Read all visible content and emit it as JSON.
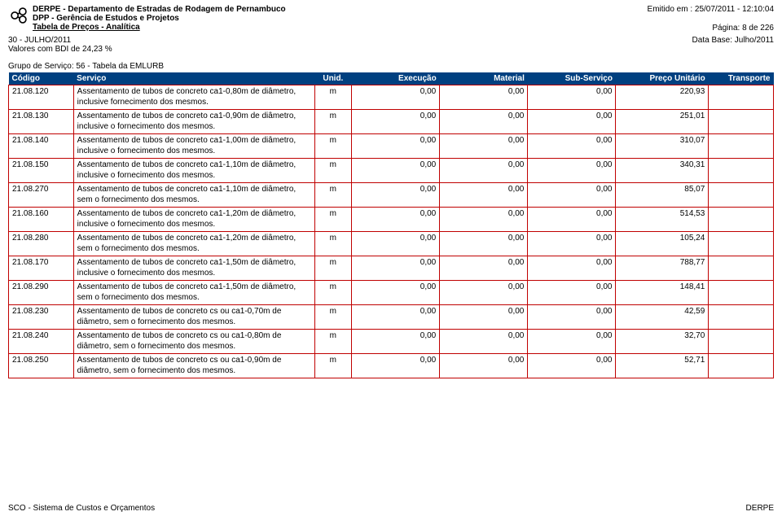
{
  "header": {
    "org": "DERPE - Departamento de Estradas de Rodagem de Pernambuco",
    "dept": "DPP - Gerência de Estudos e Projetos",
    "title": "Tabela de Preços - Analítica",
    "emitted": "Emitido em : 25/07/2011 - 12:10:04",
    "page": "Página: 8 de 226"
  },
  "sub": {
    "period": "30 - JULHO/2011",
    "bdi": "Valores com BDI de 24,23 %",
    "base": "Data Base: Julho/2011"
  },
  "group": "Grupo de Serviço: 56 - Tabela da EMLURB",
  "cols": {
    "codigo": "Código",
    "servico": "Serviço",
    "unid": "Unid.",
    "exec": "Execução",
    "mat": "Material",
    "subserv": "Sub-Serviço",
    "pu": "Preço Unitário",
    "transp": "Transporte"
  },
  "rows": [
    {
      "codigo": "21.08.120",
      "servico": "Assentamento de tubos de concreto ca1-0,80m de diâmetro, inclusive fornecimento dos mesmos.",
      "unid": "m",
      "exec": "0,00",
      "mat": "0,00",
      "sub": "0,00",
      "pu": "220,93",
      "transp": ""
    },
    {
      "codigo": "21.08.130",
      "servico": "Assentamento de tubos de concreto ca1-0,90m de diâmetro, inclusive o fornecimento dos mesmos.",
      "unid": "m",
      "exec": "0,00",
      "mat": "0,00",
      "sub": "0,00",
      "pu": "251,01",
      "transp": ""
    },
    {
      "codigo": "21.08.140",
      "servico": "Assentamento de tubos de concreto ca1-1,00m de diâmetro, inclusive o fornecimento dos mesmos.",
      "unid": "m",
      "exec": "0,00",
      "mat": "0,00",
      "sub": "0,00",
      "pu": "310,07",
      "transp": ""
    },
    {
      "codigo": "21.08.150",
      "servico": "Assentamento de tubos de concreto ca1-1,10m de diâmetro, inclusive o fornecimento dos mesmos.",
      "unid": "m",
      "exec": "0,00",
      "mat": "0,00",
      "sub": "0,00",
      "pu": "340,31",
      "transp": ""
    },
    {
      "codigo": "21.08.270",
      "servico": "Assentamento de tubos de concreto ca1-1,10m de diâmetro, sem o fornecimento dos mesmos.",
      "unid": "m",
      "exec": "0,00",
      "mat": "0,00",
      "sub": "0,00",
      "pu": "85,07",
      "transp": ""
    },
    {
      "codigo": "21.08.160",
      "servico": "Assentamento de tubos de concreto ca1-1,20m de diâmetro, inclusive o fornecimento dos mesmos.",
      "unid": "m",
      "exec": "0,00",
      "mat": "0,00",
      "sub": "0,00",
      "pu": "514,53",
      "transp": ""
    },
    {
      "codigo": "21.08.280",
      "servico": "Assentamento de tubos de concreto ca1-1,20m de diâmetro, sem o fornecimento dos mesmos.",
      "unid": "m",
      "exec": "0,00",
      "mat": "0,00",
      "sub": "0,00",
      "pu": "105,24",
      "transp": ""
    },
    {
      "codigo": "21.08.170",
      "servico": "Assentamento de tubos de concreto ca1-1,50m de diâmetro, inclusive o fornecimento dos mesmos.",
      "unid": "m",
      "exec": "0,00",
      "mat": "0,00",
      "sub": "0,00",
      "pu": "788,77",
      "transp": ""
    },
    {
      "codigo": "21.08.290",
      "servico": "Assentamento de tubos de concreto ca1-1,50m de diâmetro, sem o fornecimento dos mesmos.",
      "unid": "m",
      "exec": "0,00",
      "mat": "0,00",
      "sub": "0,00",
      "pu": "148,41",
      "transp": ""
    },
    {
      "codigo": "21.08.230",
      "servico": "Assentamento de tubos de concreto cs ou ca1-0,70m de diâmetro, sem o fornecimento dos mesmos.",
      "unid": "m",
      "exec": "0,00",
      "mat": "0,00",
      "sub": "0,00",
      "pu": "42,59",
      "transp": ""
    },
    {
      "codigo": "21.08.240",
      "servico": "Assentamento de tubos de concreto cs ou ca1-0,80m de diâmetro, sem o fornecimento dos mesmos.",
      "unid": "m",
      "exec": "0,00",
      "mat": "0,00",
      "sub": "0,00",
      "pu": "32,70",
      "transp": ""
    },
    {
      "codigo": "21.08.250",
      "servico": "Assentamento de tubos de concreto cs ou ca1-0,90m de diâmetro, sem o fornecimento dos mesmos.",
      "unid": "m",
      "exec": "0,00",
      "mat": "0,00",
      "sub": "0,00",
      "pu": "52,71",
      "transp": ""
    }
  ],
  "footer": {
    "left": "SCO - Sistema de Custos e Orçamentos",
    "right": "DERPE"
  },
  "style": {
    "header_bg": "#004080",
    "header_fg": "#ffffff",
    "cell_border": "#c00000",
    "page_bg": "#ffffff",
    "text_color": "#000000",
    "font_size_pt": 10
  }
}
